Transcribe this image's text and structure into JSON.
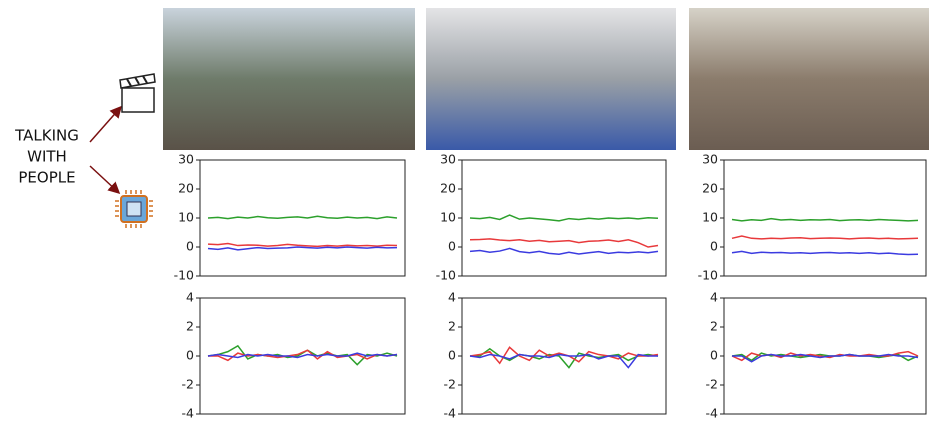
{
  "side_label": [
    "TALKING",
    "WITH",
    "PEOPLE"
  ],
  "chart_data": [
    {
      "type": "line",
      "x": [
        0,
        1,
        2,
        3,
        4,
        5,
        6,
        7,
        8,
        9,
        10,
        11,
        12,
        13,
        14,
        15,
        16,
        17,
        18,
        19
      ],
      "xlim": [
        0,
        19
      ],
      "ylim": [
        -10,
        30
      ],
      "yticks": [
        -10,
        0,
        10,
        20,
        30
      ],
      "series": [
        {
          "color": "#2ca02c",
          "values": [
            10,
            10.2,
            9.8,
            10.3,
            10,
            10.5,
            10.1,
            9.9,
            10.2,
            10.4,
            10,
            10.6,
            10.1,
            9.9,
            10.3,
            10,
            10.2,
            9.8,
            10.4,
            10
          ]
        },
        {
          "color": "#e8393b",
          "values": [
            1,
            0.8,
            1.2,
            0.5,
            0.7,
            0.6,
            0.3,
            0.5,
            0.9,
            0.6,
            0.4,
            0.2,
            0.5,
            0.3,
            0.6,
            0.4,
            0.5,
            0.3,
            0.6,
            0.5
          ]
        },
        {
          "color": "#3b3be0",
          "values": [
            -0.5,
            -0.8,
            -0.3,
            -1,
            -0.6,
            -0.2,
            -0.5,
            -0.4,
            -0.3,
            0,
            -0.2,
            -0.4,
            -0.1,
            -0.3,
            0,
            -0.2,
            -0.4,
            -0.1,
            -0.3,
            -0.2
          ]
        }
      ]
    },
    {
      "type": "line",
      "x": [
        0,
        1,
        2,
        3,
        4,
        5,
        6,
        7,
        8,
        9,
        10,
        11,
        12,
        13,
        14,
        15,
        16,
        17,
        18,
        19
      ],
      "xlim": [
        0,
        19
      ],
      "ylim": [
        -10,
        30
      ],
      "yticks": [
        -10,
        0,
        10,
        20,
        30
      ],
      "series": [
        {
          "color": "#2ca02c",
          "values": [
            10,
            9.8,
            10.2,
            9.5,
            11,
            9.6,
            10,
            9.7,
            9.4,
            9,
            9.8,
            9.5,
            9.9,
            9.6,
            10,
            9.8,
            10,
            9.7,
            10.1,
            9.9
          ]
        },
        {
          "color": "#e8393b",
          "values": [
            2.5,
            2.6,
            2.8,
            2.4,
            2.2,
            2.5,
            2,
            2.3,
            1.8,
            2,
            2.2,
            1.5,
            2,
            2.1,
            2.4,
            1.9,
            2.5,
            1.5,
            0,
            0.5
          ]
        },
        {
          "color": "#3b3be0",
          "values": [
            -1.5,
            -1.2,
            -1.8,
            -1.4,
            -0.5,
            -1.6,
            -2,
            -1.5,
            -2.2,
            -2.5,
            -1.8,
            -2.4,
            -2,
            -1.6,
            -2.2,
            -1.8,
            -2,
            -1.7,
            -2,
            -1.5
          ]
        }
      ]
    },
    {
      "type": "line",
      "x": [
        0,
        1,
        2,
        3,
        4,
        5,
        6,
        7,
        8,
        9,
        10,
        11,
        12,
        13,
        14,
        15,
        16,
        17,
        18,
        19
      ],
      "xlim": [
        0,
        19
      ],
      "ylim": [
        -10,
        30
      ],
      "yticks": [
        -10,
        0,
        10,
        20,
        30
      ],
      "series": [
        {
          "color": "#2ca02c",
          "values": [
            9.5,
            9,
            9.4,
            9.2,
            9.8,
            9.3,
            9.5,
            9.2,
            9.4,
            9.3,
            9.5,
            9.1,
            9.3,
            9.4,
            9.2,
            9.5,
            9.3,
            9.2,
            9,
            9.2
          ]
        },
        {
          "color": "#e8393b",
          "values": [
            3,
            3.8,
            3,
            2.8,
            3,
            2.9,
            3.1,
            3.2,
            2.9,
            3,
            3.1,
            3,
            2.8,
            3,
            3.1,
            2.9,
            3,
            2.8,
            2.9,
            3
          ]
        },
        {
          "color": "#3b3be0",
          "values": [
            -2,
            -1.5,
            -2.2,
            -1.8,
            -2,
            -1.9,
            -2.1,
            -2,
            -2.2,
            -2,
            -1.9,
            -2.1,
            -2,
            -2.2,
            -2,
            -2.3,
            -2.1,
            -2.4,
            -2.6,
            -2.5
          ]
        }
      ]
    },
    {
      "type": "line",
      "x": [
        0,
        1,
        2,
        3,
        4,
        5,
        6,
        7,
        8,
        9,
        10,
        11,
        12,
        13,
        14,
        15,
        16,
        17,
        18,
        19
      ],
      "xlim": [
        0,
        19
      ],
      "ylim": [
        -4,
        4
      ],
      "yticks": [
        -4,
        -2,
        0,
        2,
        4
      ],
      "series": [
        {
          "color": "#2ca02c",
          "values": [
            0,
            0.1,
            0.3,
            0.7,
            -0.2,
            0.1,
            0,
            0.1,
            -0.1,
            0,
            0.4,
            0,
            0.2,
            0,
            0.1,
            -0.6,
            0.1,
            0,
            0.2,
            0
          ]
        },
        {
          "color": "#e8393b",
          "values": [
            0,
            0,
            -0.3,
            0.2,
            0,
            0.1,
            0,
            -0.1,
            0,
            0.1,
            0.4,
            -0.2,
            0.3,
            -0.1,
            0,
            0.1,
            -0.2,
            0.1,
            0,
            0.1
          ]
        },
        {
          "color": "#3b3be0",
          "values": [
            0,
            0.1,
            0,
            -0.1,
            0.1,
            0,
            0.1,
            0,
            0,
            -0.1,
            0.1,
            0,
            0.1,
            0,
            0,
            0.2,
            0,
            0.1,
            0,
            0.1
          ]
        }
      ]
    },
    {
      "type": "line",
      "x": [
        0,
        1,
        2,
        3,
        4,
        5,
        6,
        7,
        8,
        9,
        10,
        11,
        12,
        13,
        14,
        15,
        16,
        17,
        18,
        19
      ],
      "xlim": [
        0,
        19
      ],
      "ylim": [
        -4,
        4
      ],
      "yticks": [
        -4,
        -2,
        0,
        2,
        4
      ],
      "series": [
        {
          "color": "#2ca02c",
          "values": [
            0,
            0,
            0.5,
            0,
            -0.3,
            0.1,
            0,
            -0.2,
            0.1,
            0,
            -0.8,
            0.2,
            0,
            -0.1,
            0,
            0.1,
            -0.3,
            0,
            0.1,
            0
          ]
        },
        {
          "color": "#e8393b",
          "values": [
            0,
            0.1,
            0.3,
            -0.5,
            0.6,
            0,
            -0.3,
            0.4,
            0,
            0.2,
            0,
            -0.4,
            0.3,
            0.1,
            0,
            -0.2,
            0.2,
            0,
            0,
            0.1
          ]
        },
        {
          "color": "#3b3be0",
          "values": [
            0,
            -0.1,
            0.1,
            0,
            -0.2,
            0.1,
            0,
            0,
            -0.1,
            0.1,
            0,
            0,
            0.1,
            -0.2,
            0,
            0,
            -0.8,
            0.1,
            0,
            0
          ]
        }
      ]
    },
    {
      "type": "line",
      "x": [
        0,
        1,
        2,
        3,
        4,
        5,
        6,
        7,
        8,
        9,
        10,
        11,
        12,
        13,
        14,
        15,
        16,
        17,
        18,
        19
      ],
      "xlim": [
        0,
        19
      ],
      "ylim": [
        -4,
        4
      ],
      "yticks": [
        -4,
        -2,
        0,
        2,
        4
      ],
      "series": [
        {
          "color": "#2ca02c",
          "values": [
            0,
            0.1,
            -0.3,
            0.2,
            0,
            0.1,
            0,
            -0.1,
            0,
            0.1,
            0,
            0,
            0.1,
            0,
            0,
            -0.1,
            0,
            0.1,
            -0.3,
            0
          ]
        },
        {
          "color": "#e8393b",
          "values": [
            0,
            -0.3,
            0.2,
            0,
            0.1,
            -0.1,
            0.2,
            0,
            0.1,
            0,
            -0.1,
            0.1,
            0,
            0,
            0.1,
            0,
            0,
            0.2,
            0.3,
            0
          ]
        },
        {
          "color": "#3b3be0",
          "values": [
            0,
            0,
            -0.4,
            0,
            0.1,
            0,
            0,
            0.1,
            0,
            -0.1,
            0,
            0,
            0.1,
            0,
            0,
            0,
            0.1,
            0,
            0,
            -0.1
          ]
        }
      ]
    }
  ]
}
